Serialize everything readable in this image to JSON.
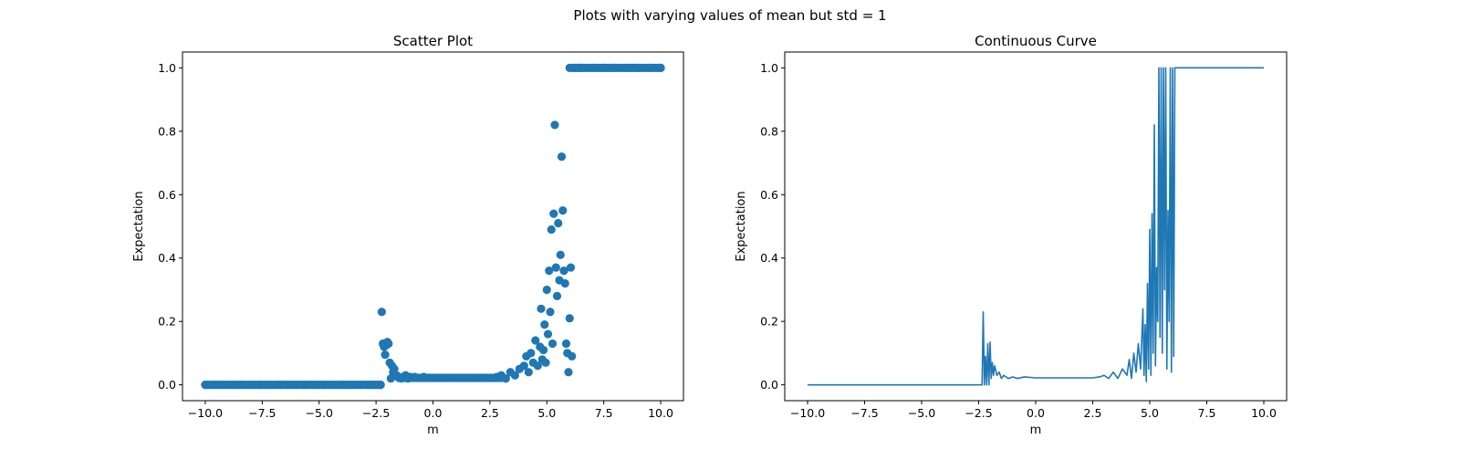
{
  "figure": {
    "suptitle": "Plots with varying values of mean but std = 1"
  },
  "chart_data": [
    {
      "type": "scatter",
      "title": "Scatter Plot",
      "xlabel": "m",
      "ylabel": "Expectation",
      "xlim": [
        -11.0,
        11.0
      ],
      "ylim": [
        -0.05,
        1.05
      ],
      "xticks": [
        -10.0,
        -7.5,
        -5.0,
        -2.5,
        0.0,
        2.5,
        5.0,
        7.5,
        10.0
      ],
      "xtick_labels": [
        "−10.0",
        "−7.5",
        "−5.0",
        "−2.5",
        "0.0",
        "2.5",
        "5.0",
        "7.5",
        "10.0"
      ],
      "yticks": [
        0.0,
        0.2,
        0.4,
        0.6,
        0.8,
        1.0
      ],
      "ytick_labels": [
        "0.0",
        "0.2",
        "0.4",
        "0.6",
        "0.8",
        "1.0"
      ],
      "grid": false,
      "color": "#1f77b4",
      "series": [
        {
          "x": [
            -10.0,
            -9.6,
            -9.2,
            -8.8,
            -8.4,
            -8.0,
            -7.6,
            -7.2,
            -6.8,
            -6.4,
            -6.0,
            -5.6,
            -5.2,
            -4.8,
            -4.4,
            -4.0,
            -3.6,
            -3.2,
            -2.8,
            -2.6,
            -2.4,
            -2.3,
            -2.25,
            -2.2,
            -2.15,
            -2.1,
            -2.05,
            -2.0,
            -1.95,
            -1.9,
            -1.85,
            -1.8,
            -1.75,
            -1.7,
            -1.6,
            -1.5,
            -1.4,
            -1.3,
            -1.2,
            -1.1,
            -1.0,
            -0.8,
            -0.6,
            -0.4,
            -0.2,
            0.0,
            0.4,
            0.8,
            1.2,
            1.6,
            2.0,
            2.4,
            2.8,
            3.0,
            3.2,
            3.4,
            3.6,
            3.8,
            4.0,
            4.1,
            4.2,
            4.3,
            4.4,
            4.5,
            4.6,
            4.7,
            4.75,
            4.8,
            4.85,
            4.9,
            4.95,
            5.0,
            5.05,
            5.1,
            5.15,
            5.2,
            5.25,
            5.3,
            5.35,
            5.4,
            5.45,
            5.5,
            5.55,
            5.6,
            5.65,
            5.7,
            5.75,
            5.8,
            5.85,
            5.9,
            5.95,
            6.0,
            6.05,
            6.1,
            6.2,
            6.5,
            7.0,
            7.5,
            8.0,
            8.5,
            9.0,
            9.5,
            10.0
          ],
          "y": [
            0.0,
            0.0,
            0.0,
            0.0,
            0.0,
            0.0,
            0.0,
            0.0,
            0.0,
            0.0,
            0.0,
            0.0,
            0.0,
            0.0,
            0.0,
            0.0,
            0.0,
            0.0,
            0.0,
            0.0,
            0.0,
            0.0,
            0.23,
            0.13,
            0.12,
            0.095,
            0.125,
            0.135,
            0.13,
            0.07,
            0.02,
            0.06,
            0.04,
            0.05,
            0.03,
            0.025,
            0.02,
            0.025,
            0.03,
            0.02,
            0.025,
            0.025,
            0.022,
            0.025,
            0.022,
            0.022,
            0.022,
            0.022,
            0.022,
            0.022,
            0.022,
            0.022,
            0.025,
            0.03,
            0.02,
            0.04,
            0.03,
            0.05,
            0.06,
            0.09,
            0.04,
            0.1,
            0.07,
            0.14,
            0.06,
            0.12,
            0.24,
            0.08,
            0.11,
            0.19,
            0.07,
            0.3,
            0.16,
            0.36,
            0.23,
            0.49,
            0.13,
            0.54,
            0.82,
            0.37,
            0.28,
            0.51,
            0.33,
            0.41,
            0.72,
            0.55,
            0.36,
            0.32,
            0.13,
            0.1,
            0.04,
            0.21,
            0.37,
            0.09,
            1.0,
            1.0,
            1.0,
            1.0,
            1.0,
            1.0,
            1.0,
            1.0,
            1.0
          ]
        }
      ]
    },
    {
      "type": "line",
      "title": "Continuous Curve",
      "xlabel": "m",
      "ylabel": "Expectation",
      "xlim": [
        -11.0,
        11.0
      ],
      "ylim": [
        -0.05,
        1.05
      ],
      "xticks": [
        -10.0,
        -7.5,
        -5.0,
        -2.5,
        0.0,
        2.5,
        5.0,
        7.5,
        10.0
      ],
      "xtick_labels": [
        "−10.0",
        "−7.5",
        "−5.0",
        "−2.5",
        "0.0",
        "2.5",
        "5.0",
        "7.5",
        "10.0"
      ],
      "yticks": [
        0.0,
        0.2,
        0.4,
        0.6,
        0.8,
        1.0
      ],
      "ytick_labels": [
        "0.0",
        "0.2",
        "0.4",
        "0.6",
        "0.8",
        "1.0"
      ],
      "grid": false,
      "color": "#1f77b4",
      "series": [
        {
          "x": [
            -10.0,
            -2.35,
            -2.3,
            -2.25,
            -2.2,
            -2.15,
            -2.1,
            -2.05,
            -2.0,
            -1.95,
            -1.9,
            -1.85,
            -1.8,
            -1.7,
            -1.6,
            -1.5,
            -1.4,
            -1.2,
            -1.0,
            -0.8,
            -0.5,
            0.0,
            0.5,
            1.0,
            1.5,
            2.0,
            2.5,
            2.8,
            3.0,
            3.2,
            3.4,
            3.6,
            3.8,
            4.0,
            4.1,
            4.2,
            4.3,
            4.4,
            4.5,
            4.6,
            4.7,
            4.75,
            4.8,
            4.85,
            4.9,
            4.95,
            5.0,
            5.05,
            5.1,
            5.15,
            5.2,
            5.25,
            5.3,
            5.35,
            5.4,
            5.45,
            5.5,
            5.55,
            5.6,
            5.65,
            5.7,
            5.75,
            5.8,
            5.85,
            5.9,
            5.95,
            6.0,
            6.05,
            6.1,
            6.15,
            6.2,
            6.3,
            7.0,
            8.0,
            9.0,
            10.0
          ],
          "y": [
            0.0,
            0.0,
            0.23,
            0.0,
            0.09,
            0.0,
            0.13,
            0.0,
            0.135,
            0.02,
            0.07,
            0.03,
            0.06,
            0.03,
            0.04,
            0.02,
            0.03,
            0.02,
            0.025,
            0.02,
            0.025,
            0.022,
            0.022,
            0.022,
            0.022,
            0.022,
            0.022,
            0.025,
            0.03,
            0.02,
            0.04,
            0.02,
            0.05,
            0.03,
            0.08,
            0.02,
            0.1,
            0.04,
            0.13,
            0.05,
            0.24,
            0.03,
            0.19,
            0.01,
            0.32,
            0.05,
            0.49,
            0.03,
            0.54,
            0.1,
            0.82,
            0.06,
            0.37,
            0.2,
            1.0,
            0.15,
            1.0,
            0.1,
            1.0,
            0.3,
            1.0,
            0.05,
            0.55,
            0.2,
            1.0,
            0.04,
            1.0,
            0.09,
            1.0,
            1.0,
            1.0,
            1.0,
            1.0,
            1.0,
            1.0,
            1.0
          ]
        }
      ]
    }
  ]
}
